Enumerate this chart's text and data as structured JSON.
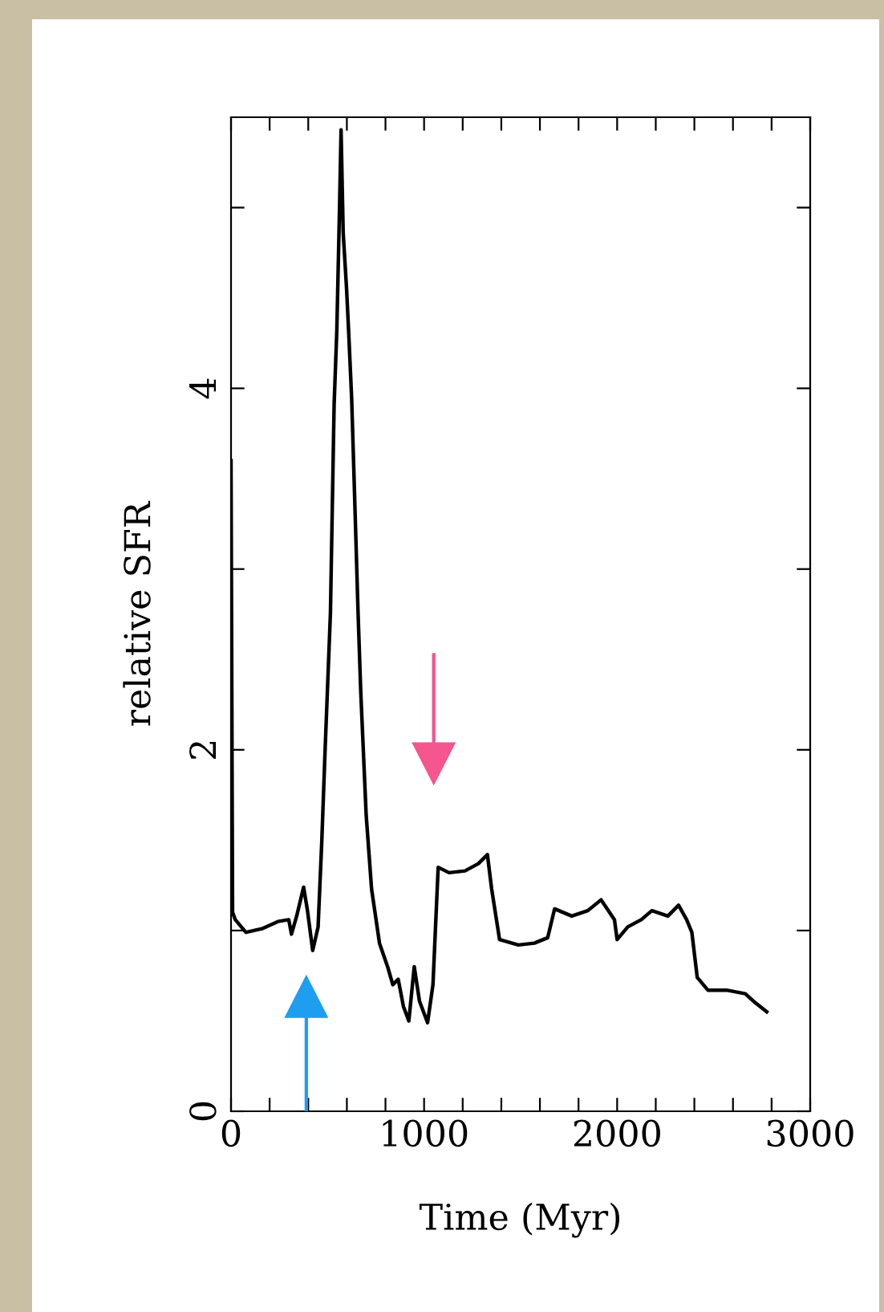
{
  "chart_data": {
    "type": "line",
    "xlabel": "Time (Myr)",
    "ylabel": "relative SFR",
    "xlim": [
      0,
      3000
    ],
    "ylim": [
      0,
      5.5
    ],
    "xticks": [
      0,
      {
        "value": 200,
        "label": null
      },
      {
        "value": 400,
        "label": null
      },
      {
        "value": 600,
        "label": null
      },
      {
        "value": 800,
        "label": null
      },
      1000,
      {
        "value": 1200,
        "label": null
      },
      {
        "value": 1400,
        "label": null
      },
      {
        "value": 1600,
        "label": null
      },
      {
        "value": 1800,
        "label": null
      },
      2000,
      {
        "value": 2200,
        "label": null
      },
      {
        "value": 2400,
        "label": null
      },
      {
        "value": 2600,
        "label": null
      },
      {
        "value": 2800,
        "label": null
      },
      3000
    ],
    "yticks": [
      0,
      {
        "value": 1,
        "label": null
      },
      2,
      {
        "value": 3,
        "label": null
      },
      4,
      {
        "value": 5,
        "label": null
      }
    ],
    "grid": false,
    "legend": false,
    "marker": "none",
    "line_style": "solid",
    "series": [
      {
        "color": "#000000",
        "x": [
          0,
          8,
          22,
          77,
          160,
          243,
          299,
          313,
          340,
          376,
          396,
          423,
          451,
          470,
          487,
          515,
          534,
          548,
          562,
          570,
          581,
          598,
          609,
          625,
          645,
          658,
          672,
          700,
          728,
          769,
          811,
          838,
          866,
          893,
          921,
          949,
          976,
          1018,
          1046,
          1073,
          1129,
          1212,
          1281,
          1328,
          1350,
          1391,
          1488,
          1571,
          1640,
          1676,
          1765,
          1848,
          1917,
          1986,
          2000,
          2055,
          2125,
          2180,
          2263,
          2318,
          2360,
          2387,
          2415,
          2470,
          2567,
          2664,
          2705,
          2775
        ],
        "values": [
          3.6,
          1.1,
          1.06,
          0.99,
          1.01,
          1.05,
          1.06,
          0.98,
          1.08,
          1.24,
          1.11,
          0.89,
          1.02,
          1.49,
          1.99,
          2.76,
          3.91,
          4.32,
          5.0,
          5.43,
          4.86,
          4.56,
          4.32,
          3.94,
          3.23,
          2.76,
          2.32,
          1.64,
          1.23,
          0.93,
          0.8,
          0.7,
          0.73,
          0.58,
          0.5,
          0.8,
          0.61,
          0.49,
          0.7,
          1.35,
          1.32,
          1.33,
          1.37,
          1.42,
          1.23,
          0.95,
          0.92,
          0.93,
          0.96,
          1.12,
          1.08,
          1.11,
          1.17,
          1.06,
          0.95,
          1.02,
          1.06,
          1.11,
          1.08,
          1.14,
          1.06,
          0.99,
          0.74,
          0.67,
          0.67,
          0.65,
          0.61,
          0.55
        ]
      }
    ]
  }
}
